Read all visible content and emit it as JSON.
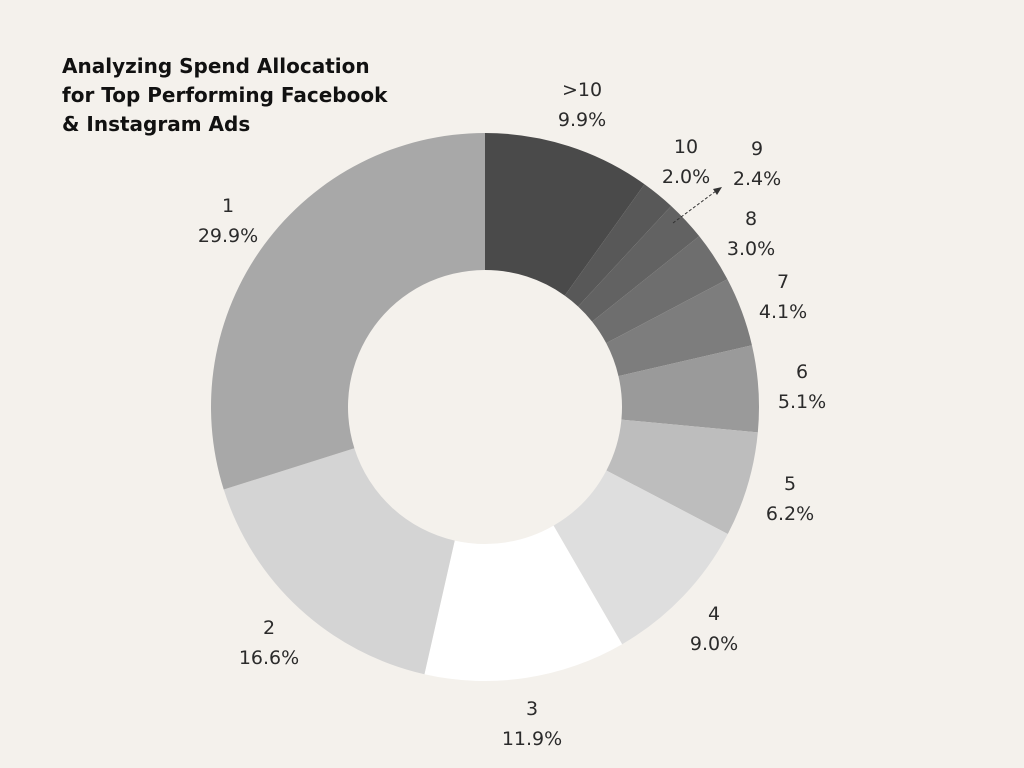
{
  "chart_data": {
    "type": "pie",
    "subtype": "donut",
    "title_lines": [
      "Analyzing Spend Allocation",
      "for Top Performing Facebook",
      "& Instagram Ads"
    ],
    "slices": [
      {
        "label": ">10",
        "value": 9.9,
        "display": "9.9%",
        "color": "#4a4a4a"
      },
      {
        "label": "10",
        "value": 2.0,
        "display": "2.0%",
        "color": "#585858"
      },
      {
        "label": "9",
        "value": 2.4,
        "display": "2.4%",
        "color": "#626262"
      },
      {
        "label": "8",
        "value": 3.0,
        "display": "3.0%",
        "color": "#6e6e6e"
      },
      {
        "label": "7",
        "value": 4.1,
        "display": "4.1%",
        "color": "#7d7d7d"
      },
      {
        "label": "6",
        "value": 5.1,
        "display": "5.1%",
        "color": "#9a9a9a"
      },
      {
        "label": "5",
        "value": 6.2,
        "display": "6.2%",
        "color": "#bdbdbd"
      },
      {
        "label": "4",
        "value": 9.0,
        "display": "9.0%",
        "color": "#dedede"
      },
      {
        "label": "3",
        "value": 11.9,
        "display": "11.9%",
        "color": "#ffffff"
      },
      {
        "label": "2",
        "value": 16.6,
        "display": "16.6%",
        "color": "#d4d4d4"
      },
      {
        "label": "1",
        "value": 29.9,
        "display": "29.9%",
        "color": "#a8a8a8"
      }
    ],
    "legend": "none",
    "background": "#f4f1ec"
  }
}
